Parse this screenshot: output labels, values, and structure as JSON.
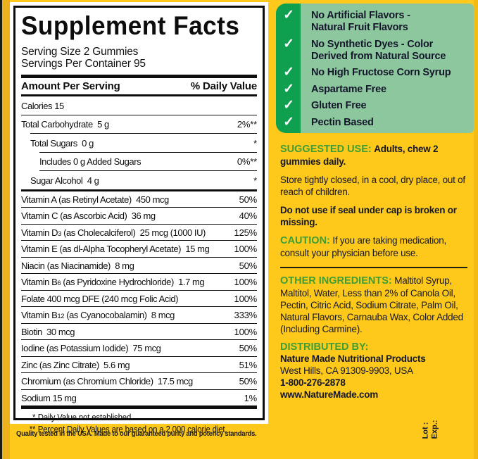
{
  "facts": {
    "title": "Supplement Facts",
    "serving_size": "Serving Size 2 Gummies",
    "servings_per_container": "Servings Per Container 95",
    "columns": {
      "amount": "Amount Per Serving",
      "daily_value": "% Daily Value"
    },
    "rows": [
      {
        "pre": "Calories 15",
        "sub": "",
        "post": "",
        "dv": "",
        "indent": 0,
        "sep": "none",
        "sep_indent": 0
      },
      {
        "pre": "Total Carbohydrate  5 g",
        "sub": "",
        "post": "",
        "dv": "2%**",
        "indent": 0,
        "sep": "hair",
        "sep_indent": 0
      },
      {
        "pre": "Total Sugars  0 g",
        "sub": "",
        "post": "",
        "dv": "*",
        "indent": 1,
        "sep": "hair",
        "sep_indent": 1
      },
      {
        "pre": "Includes 0 g Added Sugars",
        "sub": "",
        "post": "",
        "dv": "0%**",
        "indent": 2,
        "sep": "hair",
        "sep_indent": 2
      },
      {
        "pre": "Sugar Alcohol  4 g",
        "sub": "",
        "post": "",
        "dv": "*",
        "indent": 1,
        "sep": "hair",
        "sep_indent": 2
      },
      {
        "pre": "Vitamin A (as Retinyl Acetate)  450 mcg",
        "sub": "",
        "post": "",
        "dv": "50%",
        "indent": 0,
        "sep": "med",
        "sep_indent": 0
      },
      {
        "pre": "Vitamin C (as Ascorbic Acid)  36 mg",
        "sub": "",
        "post": "",
        "dv": "40%",
        "indent": 0,
        "sep": "hair",
        "sep_indent": 0
      },
      {
        "pre": "Vitamin D",
        "sub": "3",
        "post": " (as Cholecalciferol)  25 mcg (1000 IU)",
        "dv": "125%",
        "indent": 0,
        "sep": "hair",
        "sep_indent": 0
      },
      {
        "pre": "Vitamin E (as dl-Alpha Tocopheryl Acetate)  15 mg",
        "sub": "",
        "post": "",
        "dv": "100%",
        "indent": 0,
        "sep": "hair",
        "sep_indent": 0
      },
      {
        "pre": "Niacin (as Niacinamide)  8 mg",
        "sub": "",
        "post": "",
        "dv": "50%",
        "indent": 0,
        "sep": "hair",
        "sep_indent": 0
      },
      {
        "pre": "Vitamin B",
        "sub": "6",
        "post": " (as Pyridoxine Hydrochloride)  1.7 mg",
        "dv": "100%",
        "indent": 0,
        "sep": "hair",
        "sep_indent": 0
      },
      {
        "pre": "Folate 400 mcg DFE (240 mcg Folic Acid)",
        "sub": "",
        "post": "",
        "dv": "100%",
        "indent": 0,
        "sep": "hair",
        "sep_indent": 0
      },
      {
        "pre": "Vitamin B",
        "sub": "12",
        "post": " (as Cyanocobalamin)  8 mcg",
        "dv": "333%",
        "indent": 0,
        "sep": "hair",
        "sep_indent": 0
      },
      {
        "pre": "Biotin  30 mcg",
        "sub": "",
        "post": "",
        "dv": "100%",
        "indent": 0,
        "sep": "hair",
        "sep_indent": 0
      },
      {
        "pre": "Iodine (as Potassium Iodide)  75 mcg",
        "sub": "",
        "post": "",
        "dv": "50%",
        "indent": 0,
        "sep": "hair",
        "sep_indent": 0
      },
      {
        "pre": "Zinc (as Zinc Citrate)  5.6 mg",
        "sub": "",
        "post": "",
        "dv": "51%",
        "indent": 0,
        "sep": "hair",
        "sep_indent": 0
      },
      {
        "pre": "Chromium (as Chromium Chloride)  17.5 mcg",
        "sub": "",
        "post": "",
        "dv": "50%",
        "indent": 0,
        "sep": "hair",
        "sep_indent": 0
      },
      {
        "pre": "Sodium 15 mg",
        "sub": "",
        "post": "",
        "dv": "1%",
        "indent": 0,
        "sep": "hair",
        "sep_indent": 0
      }
    ],
    "footnotes": [
      {
        "mark": "*",
        "text": "Daily Value not established."
      },
      {
        "mark": "**",
        "text": "Percent Daily Values are based on a 2,000 calorie diet."
      }
    ]
  },
  "checklist": {
    "check_glyph": "✓",
    "items": [
      {
        "line1": "No Artificial Flavors -",
        "line2": "Natural Fruit Flavors"
      },
      {
        "line1": "No Synthetic Dyes - Color",
        "line2": "Derived from Natural Source"
      },
      {
        "line1": "No High Fructose Corn Syrup",
        "line2": ""
      },
      {
        "line1": "Aspartame Free",
        "line2": ""
      },
      {
        "line1": "Gluten Free",
        "line2": ""
      },
      {
        "line1": "Pectin Based",
        "line2": ""
      }
    ]
  },
  "info": {
    "suggested_use": {
      "heading": "SUGGESTED USE:",
      "text": "Adults, chew 2 gummies daily."
    },
    "storage": "Store tightly closed, in a cool, dry place, out of reach of children.",
    "seal_warning": "Do not use if seal under cap is broken or missing.",
    "caution": {
      "heading": "CAUTION:",
      "text": "If you are taking medication, consult your physician before use."
    },
    "other_ingredients": {
      "heading": "OTHER INGREDIENTS:",
      "text": "Maltitol Syrup, Maltitol, Water, Less than 2% of Canola Oil, Pectin, Citric Acid, Sodium Citrate, Palm Oil, Natural Flavors, Carnauba Wax, Color Added (Including Carmine)."
    },
    "distributed_by": {
      "heading": "DISTRIBUTED BY:",
      "lines": [
        "Nature Made Nutritional Products",
        "West Hills, CA 91309-9903, USA",
        "1-800-276-2878",
        "www.NatureMade.com"
      ]
    },
    "lot_label": "Lot :",
    "exp_label": "Exp.:"
  },
  "quality_note": "Quality tested in the USA. Made to our guaranteed purity and potency standards.",
  "colors": {
    "background_yellow": "#FFC91C",
    "gold_band": "#EDB11E",
    "dark_green": "#0FA04F",
    "light_green": "#8CC79E",
    "heading_green": "#3E9E35",
    "text_navy": "#14172A"
  }
}
